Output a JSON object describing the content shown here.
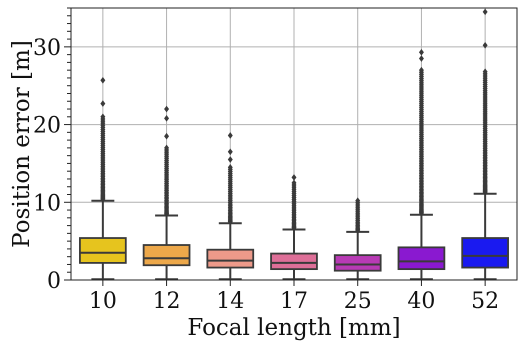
{
  "chart_data": {
    "type": "box",
    "title": "",
    "xlabel": "Focal length [mm]",
    "ylabel": "Position error [m]",
    "ylim": [
      0,
      35
    ],
    "yticks": [
      0,
      10,
      20,
      30
    ],
    "y_minor_tick_step": 1,
    "grid": true,
    "categories": [
      "10",
      "12",
      "14",
      "17",
      "25",
      "40",
      "52"
    ],
    "boxes": [
      {
        "category": "10",
        "color": "#e6c41e",
        "q1": 2.2,
        "median": 3.5,
        "q3": 5.4,
        "whisker_low": 0.1,
        "whisker_high": 10.2,
        "outliers_from": 10.4,
        "outliers_to": 21.0,
        "sparse_outliers": [
          22.7,
          25.7
        ]
      },
      {
        "category": "12",
        "color": "#eda84a",
        "q1": 1.9,
        "median": 2.8,
        "q3": 4.5,
        "whisker_low": 0.1,
        "whisker_high": 8.3,
        "outliers_from": 8.5,
        "outliers_to": 17.0,
        "sparse_outliers": [
          18.5,
          20.8,
          22.0
        ]
      },
      {
        "category": "14",
        "color": "#ed9a8a",
        "q1": 1.6,
        "median": 2.5,
        "q3": 3.9,
        "whisker_low": 0.1,
        "whisker_high": 7.3,
        "outliers_from": 7.5,
        "outliers_to": 14.5,
        "sparse_outliers": [
          15.5,
          16.5,
          18.6
        ]
      },
      {
        "category": "17",
        "color": "#de6f98",
        "q1": 1.4,
        "median": 2.2,
        "q3": 3.4,
        "whisker_low": 0.1,
        "whisker_high": 6.5,
        "outliers_from": 6.7,
        "outliers_to": 12.5,
        "sparse_outliers": [
          13.2
        ]
      },
      {
        "category": "25",
        "color": "#b83ab5",
        "q1": 1.2,
        "median": 2.0,
        "q3": 3.2,
        "whisker_low": 0.1,
        "whisker_high": 6.2,
        "outliers_from": 6.4,
        "outliers_to": 10.2,
        "sparse_outliers": []
      },
      {
        "category": "40",
        "color": "#8a19d0",
        "q1": 1.4,
        "median": 2.4,
        "q3": 4.2,
        "whisker_low": 0.1,
        "whisker_high": 8.4,
        "outliers_from": 8.6,
        "outliers_to": 27.0,
        "sparse_outliers": [
          28.5,
          29.3
        ]
      },
      {
        "category": "52",
        "color": "#1a1af0",
        "q1": 1.6,
        "median": 3.1,
        "q3": 5.4,
        "whisker_low": 0.1,
        "whisker_high": 11.1,
        "outliers_from": 11.3,
        "outliers_to": 26.8,
        "sparse_outliers": [
          30.2,
          34.5
        ]
      }
    ]
  }
}
